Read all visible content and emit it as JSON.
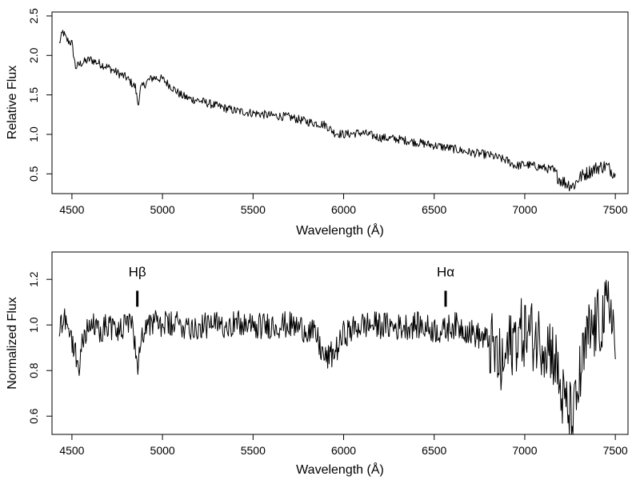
{
  "chart_data": [
    {
      "type": "line",
      "xlabel": "Wavelength (Å)",
      "ylabel": "Relative Flux",
      "xlim": [
        4390,
        7570
      ],
      "ylim": [
        0.25,
        2.55
      ],
      "xticks": [
        4500,
        5000,
        5500,
        6000,
        6500,
        7000,
        7500
      ],
      "xtick_labels": [
        "4500",
        "5000",
        "5500",
        "6000",
        "6500",
        "7000",
        "7500"
      ],
      "yticks": [
        0.5,
        1.0,
        1.5,
        2.0,
        2.5
      ],
      "ytick_labels": [
        "0.5",
        "1.0",
        "1.5",
        "2.0",
        "2.5"
      ],
      "grid": false,
      "series": [
        {
          "x": [
            4430,
            4450,
            4470,
            4500,
            4520,
            4550,
            4600,
            4650,
            4700,
            4750,
            4800,
            4850,
            4865,
            4880,
            4920,
            4950,
            5000,
            5050,
            5100,
            5150,
            5200,
            5300,
            5400,
            5500,
            5600,
            5700,
            5800,
            5900,
            5950,
            6000,
            6100,
            6200,
            6300,
            6400,
            6500,
            6600,
            6700,
            6800,
            6900,
            6950,
            7000,
            7050,
            7100,
            7150,
            7200,
            7230,
            7270,
            7300,
            7350,
            7400,
            7450,
            7500
          ],
          "y": [
            2.15,
            2.3,
            2.2,
            2.15,
            1.85,
            1.9,
            1.95,
            1.9,
            1.85,
            1.78,
            1.72,
            1.6,
            1.38,
            1.58,
            1.68,
            1.72,
            1.7,
            1.6,
            1.5,
            1.45,
            1.43,
            1.36,
            1.3,
            1.27,
            1.24,
            1.22,
            1.16,
            1.12,
            1.02,
            1.0,
            1.02,
            0.96,
            0.94,
            0.9,
            0.86,
            0.82,
            0.77,
            0.74,
            0.67,
            0.6,
            0.62,
            0.6,
            0.58,
            0.55,
            0.42,
            0.38,
            0.35,
            0.45,
            0.52,
            0.58,
            0.6,
            0.5
          ]
        }
      ]
    },
    {
      "type": "line",
      "xlabel": "Wavelength (Å)",
      "ylabel": "Normalized Flux",
      "xlim": [
        4390,
        7570
      ],
      "ylim": [
        0.52,
        1.32
      ],
      "xticks": [
        4500,
        5000,
        5500,
        6000,
        6500,
        7000,
        7500
      ],
      "xtick_labels": [
        "4500",
        "5000",
        "5500",
        "6000",
        "6500",
        "7000",
        "7500"
      ],
      "yticks": [
        0.6,
        0.8,
        1.0,
        1.2
      ],
      "ytick_labels": [
        "0.6",
        "0.8",
        "1.0",
        "1.2"
      ],
      "grid": false,
      "annotations": [
        {
          "label": "Hβ",
          "x": 4861,
          "marker_y": [
            1.08,
            1.15
          ]
        },
        {
          "label": "Hα",
          "x": 6563,
          "marker_y": [
            1.08,
            1.15
          ]
        }
      ],
      "series": [
        {
          "x": [
            4430,
            4460,
            4490,
            4520,
            4540,
            4560,
            4600,
            4650,
            4700,
            4750,
            4800,
            4840,
            4860,
            4875,
            4900,
            4950,
            5000,
            5100,
            5200,
            5300,
            5400,
            5500,
            5600,
            5700,
            5800,
            5850,
            5880,
            5900,
            5920,
            5950,
            5980,
            6000,
            6050,
            6100,
            6200,
            6300,
            6400,
            6500,
            6550,
            6600,
            6650,
            6700,
            6750,
            6800,
            6850,
            6880,
            6900,
            6950,
            7000,
            7050,
            7100,
            7150,
            7180,
            7200,
            7220,
            7250,
            7270,
            7300,
            7350,
            7400,
            7450,
            7480,
            7500
          ],
          "y": [
            0.98,
            1.05,
            0.95,
            0.88,
            0.8,
            0.95,
            1.0,
            0.98,
            1.0,
            0.97,
            1.0,
            0.98,
            0.82,
            0.9,
            1.0,
            1.01,
            1.0,
            1.0,
            0.99,
            1.0,
            1.01,
            0.99,
            1.0,
            1.0,
            0.98,
            0.95,
            0.88,
            0.85,
            0.86,
            0.88,
            0.92,
            0.96,
            0.98,
            1.0,
            1.0,
            0.99,
            1.0,
            0.98,
            0.97,
            1.0,
            0.99,
            0.97,
            0.95,
            0.93,
            0.85,
            0.8,
            0.88,
            0.95,
            0.97,
            0.95,
            0.93,
            0.9,
            0.8,
            0.7,
            0.65,
            0.6,
            0.58,
            0.75,
            0.95,
            1.0,
            1.05,
            1.1,
            0.85
          ]
        }
      ]
    }
  ]
}
